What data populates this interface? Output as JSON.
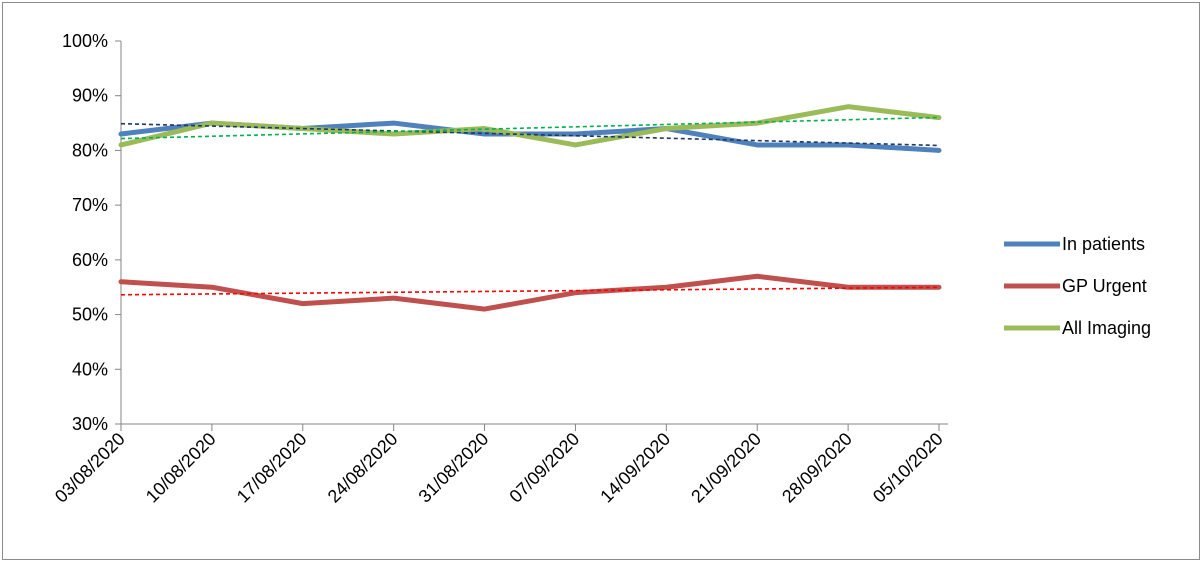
{
  "chart_data": {
    "type": "line",
    "categories": [
      "03/08/2020",
      "10/08/2020",
      "17/08/2020",
      "24/08/2020",
      "31/08/2020",
      "07/09/2020",
      "14/09/2020",
      "21/09/2020",
      "28/09/2020",
      "05/10/2020"
    ],
    "y_ticks": [
      "30%",
      "40%",
      "50%",
      "60%",
      "70%",
      "80%",
      "90%",
      "100%"
    ],
    "ylim": [
      30,
      100
    ],
    "grid": false,
    "legend_position": "right",
    "series": [
      {
        "name": "In patients",
        "color": "#4f81bd",
        "trend_color": "#1f3864",
        "values": [
          83,
          85,
          84,
          85,
          83,
          83,
          84,
          81,
          81,
          80
        ]
      },
      {
        "name": "GP Urgent",
        "color": "#c0504d",
        "trend_color": "#ff0000",
        "values": [
          56,
          55,
          52,
          53,
          51,
          54,
          55,
          57,
          55,
          55
        ]
      },
      {
        "name": "All Imaging",
        "color": "#9bbb59",
        "trend_color": "#00b050",
        "values": [
          81,
          85,
          84,
          83,
          84,
          81,
          84,
          85,
          88,
          86
        ]
      }
    ],
    "trendlines": true
  }
}
